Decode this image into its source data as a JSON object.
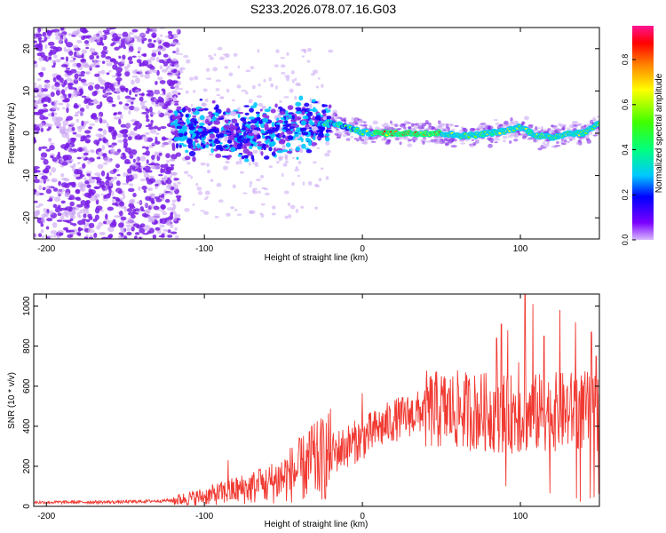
{
  "title": "S233.2026.078.07.16.G03",
  "colors": {
    "snr_line": "#f03a32",
    "scatter_main": "#7a1fe6",
    "scatter_faint": "#c9a4f4",
    "axis": "#000000"
  },
  "chart_data": [
    {
      "type": "heatmap",
      "name": "spectrogram",
      "xlabel": "Height of straight line (km)",
      "ylabel": "Frequency (Hz)",
      "xlim": [
        -208,
        150
      ],
      "ylim": [
        -25,
        25
      ],
      "xticks": [
        -200,
        -100,
        0,
        100
      ],
      "yticks": [
        -20,
        -10,
        0,
        10,
        20
      ],
      "xtick_labels": [
        "-200",
        "-100",
        "0",
        "100"
      ],
      "ytick_labels": [
        "-20",
        "-10",
        "0",
        "10",
        "20"
      ],
      "colorbar": {
        "label": "Normalized spectral amplitude",
        "range": [
          0,
          0.95
        ],
        "ticks": [
          0,
          0.2,
          0.4,
          0.6,
          0.8
        ],
        "tick_labels": [
          "0.0",
          "0.2",
          "0.4",
          "0.6",
          "0.8"
        ],
        "colormap": [
          "#d8b8ff",
          "#7b00ff",
          "#0000ff",
          "#00c8ff",
          "#00ff80",
          "#40ff00",
          "#ffff00",
          "#ff8000",
          "#ff0000",
          "#ff1493"
        ]
      },
      "ridge": {
        "description_points_km_hz": [
          [
            -120,
            1.5
          ],
          [
            -100,
            0.5
          ],
          [
            -80,
            0.3
          ],
          [
            -60,
            0.5
          ],
          [
            -40,
            1.5
          ],
          [
            -30,
            2.2
          ],
          [
            -20,
            2.5
          ],
          [
            -10,
            1.5
          ],
          [
            0,
            0.2
          ],
          [
            10,
            0
          ],
          [
            20,
            0
          ],
          [
            30,
            0
          ],
          [
            40,
            0
          ],
          [
            50,
            0
          ],
          [
            60,
            -0.5
          ],
          [
            70,
            -0.5
          ],
          [
            80,
            0
          ],
          [
            90,
            0.5
          ],
          [
            100,
            1.5
          ],
          [
            110,
            -0.5
          ],
          [
            120,
            -1
          ],
          [
            130,
            0
          ],
          [
            140,
            0
          ],
          [
            150,
            2.5
          ]
        ]
      }
    },
    {
      "type": "line",
      "name": "snr",
      "xlabel": "Height of straight line (km)",
      "ylabel": "SNR (10 * v/v)",
      "xlim": [
        -208,
        150
      ],
      "ylim": [
        0,
        1060
      ],
      "xticks": [
        -200,
        -100,
        0,
        100
      ],
      "yticks": [
        0,
        200,
        400,
        600,
        800,
        1000
      ],
      "xtick_labels": [
        "-200",
        "-100",
        "0",
        "100"
      ],
      "ytick_labels": [
        "0",
        "200",
        "400",
        "600",
        "800",
        "1000"
      ],
      "trend_km_snr": [
        [
          -208,
          20
        ],
        [
          -150,
          22
        ],
        [
          -120,
          30
        ],
        [
          -100,
          50
        ],
        [
          -80,
          80
        ],
        [
          -60,
          110
        ],
        [
          -40,
          180
        ],
        [
          -20,
          260
        ],
        [
          0,
          340
        ],
        [
          20,
          430
        ],
        [
          40,
          480
        ],
        [
          60,
          480
        ],
        [
          80,
          470
        ],
        [
          100,
          460
        ],
        [
          120,
          470
        ],
        [
          140,
          480
        ],
        [
          150,
          470
        ]
      ],
      "peaks_km_snr": [
        [
          -85,
          230
        ],
        [
          -65,
          180
        ],
        [
          -32,
          400
        ],
        [
          0,
          565
        ],
        [
          10,
          400
        ],
        [
          50,
          650
        ],
        [
          75,
          600
        ],
        [
          85,
          840
        ],
        [
          88,
          910
        ],
        [
          92,
          880
        ],
        [
          99,
          720
        ],
        [
          103,
          1060
        ],
        [
          108,
          1010
        ],
        [
          115,
          850
        ],
        [
          125,
          980
        ],
        [
          135,
          920
        ],
        [
          145,
          870
        ],
        [
          148,
          750
        ]
      ]
    }
  ]
}
